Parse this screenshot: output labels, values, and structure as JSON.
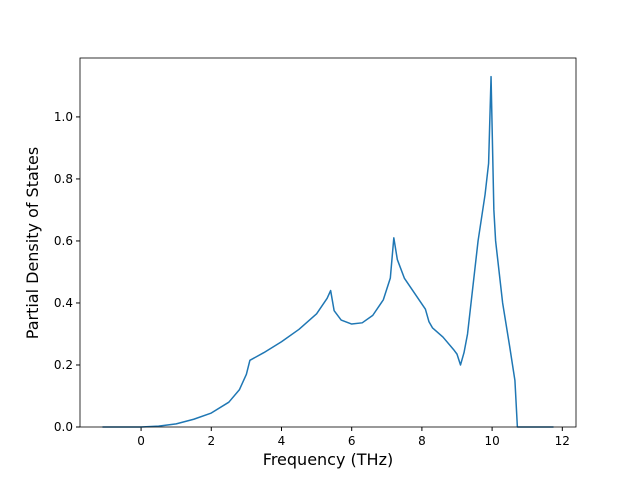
{
  "chart_data": {
    "type": "line",
    "x_label": "Frequency (THz)",
    "y_label": "Partial Density of States",
    "x": [
      -1.1,
      0,
      0.5,
      1,
      1.5,
      2,
      2.5,
      2.8,
      3.0,
      3.1,
      3.5,
      4,
      4.5,
      5,
      5.3,
      5.4,
      5.5,
      5.7,
      6.0,
      6.3,
      6.6,
      6.9,
      7.1,
      7.2,
      7.3,
      7.5,
      7.8,
      8.1,
      8.2,
      8.3,
      8.6,
      8.9,
      9.0,
      9.1,
      9.2,
      9.3,
      9.5,
      9.6,
      9.8,
      9.9,
      9.97,
      10.05,
      10.1,
      10.3,
      10.5,
      10.65,
      10.72,
      11.75
    ],
    "series": [
      {
        "color": "#1f77b4",
        "values": [
          0,
          0,
          0.003,
          0.01,
          0.025,
          0.045,
          0.08,
          0.12,
          0.17,
          0.215,
          0.24,
          0.275,
          0.315,
          0.365,
          0.415,
          0.44,
          0.375,
          0.345,
          0.332,
          0.336,
          0.36,
          0.41,
          0.48,
          0.61,
          0.54,
          0.48,
          0.43,
          0.38,
          0.34,
          0.32,
          0.29,
          0.25,
          0.235,
          0.2,
          0.24,
          0.3,
          0.5,
          0.6,
          0.75,
          0.85,
          1.13,
          0.7,
          0.6,
          0.4,
          0.26,
          0.15,
          0,
          0
        ]
      }
    ],
    "xlim": [
      -1.74,
      12.39
    ],
    "ylim": [
      0,
      1.19
    ],
    "xticks": [
      0,
      2,
      4,
      6,
      8,
      10,
      12
    ],
    "yticks": [
      {
        "value": 0,
        "label": "0.0"
      },
      {
        "value": 0.2,
        "label": "0.2"
      },
      {
        "value": 0.4,
        "label": "0.4"
      },
      {
        "value": 0.6,
        "label": "0.6"
      },
      {
        "value": 0.8,
        "label": "0.8"
      },
      {
        "value": 1.0,
        "label": "1.0"
      }
    ],
    "grid": false
  }
}
